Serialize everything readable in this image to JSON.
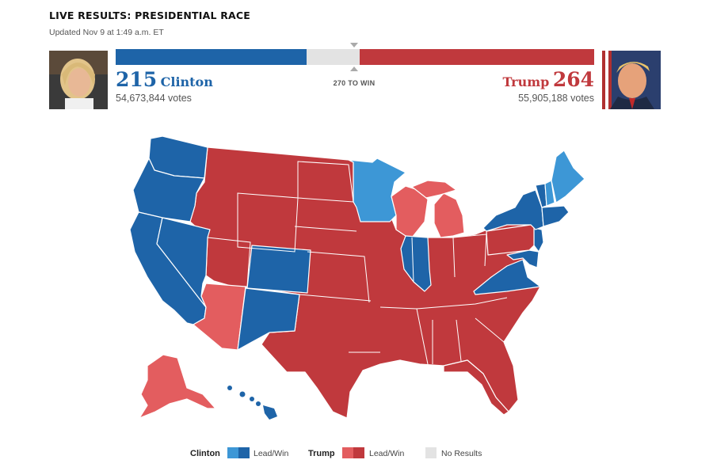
{
  "header": {
    "title": "LIVE RESULTS: PRESIDENTIAL RACE",
    "updated": "Updated Nov 9 at 1:49 a.m. ET"
  },
  "tally": {
    "threshold_label": "270 TO WIN",
    "total_electoral_votes": 538,
    "threshold": 270,
    "clinton": {
      "name": "Clinton",
      "electoral_votes": "215",
      "votes": "54,673,844 votes",
      "color": "#1e64a8"
    },
    "trump": {
      "name": "Trump",
      "electoral_votes": "264",
      "votes": "55,905,188 votes",
      "color": "#c0393d"
    },
    "no_result_color": "#e3e3e3"
  },
  "legend": {
    "clinton_label": "Clinton",
    "trump_label": "Trump",
    "lead_win_label": "Lead/Win",
    "no_results_label": "No Results",
    "colors": {
      "clinton_lead": "#3d97d6",
      "clinton_win": "#1e64a8",
      "trump_lead": "#e35d5f",
      "trump_win": "#c0393d",
      "none": "#e3e3e3"
    }
  },
  "map_states": [
    {
      "state": "WA",
      "status": "clinton_win"
    },
    {
      "state": "OR",
      "status": "clinton_win"
    },
    {
      "state": "CA",
      "status": "clinton_win"
    },
    {
      "state": "NV",
      "status": "clinton_win"
    },
    {
      "state": "CO",
      "status": "clinton_win"
    },
    {
      "state": "NM",
      "status": "clinton_win"
    },
    {
      "state": "IL",
      "status": "clinton_win"
    },
    {
      "state": "VA",
      "status": "clinton_win"
    },
    {
      "state": "NY",
      "status": "clinton_win"
    },
    {
      "state": "HI",
      "status": "clinton_win"
    },
    {
      "state": "MN",
      "status": "clinton_lead"
    },
    {
      "state": "NH",
      "status": "clinton_lead"
    },
    {
      "state": "ME",
      "status": "clinton_lead"
    },
    {
      "state": "AZ",
      "status": "trump_lead"
    },
    {
      "state": "WI",
      "status": "trump_lead"
    },
    {
      "state": "MI",
      "status": "trump_lead"
    },
    {
      "state": "AK",
      "status": "trump_lead"
    },
    {
      "state": "TX",
      "status": "trump_win"
    },
    {
      "state": "FL",
      "status": "trump_win"
    },
    {
      "state": "PA",
      "status": "trump_win"
    },
    {
      "state": "OH",
      "status": "trump_win"
    }
  ]
}
